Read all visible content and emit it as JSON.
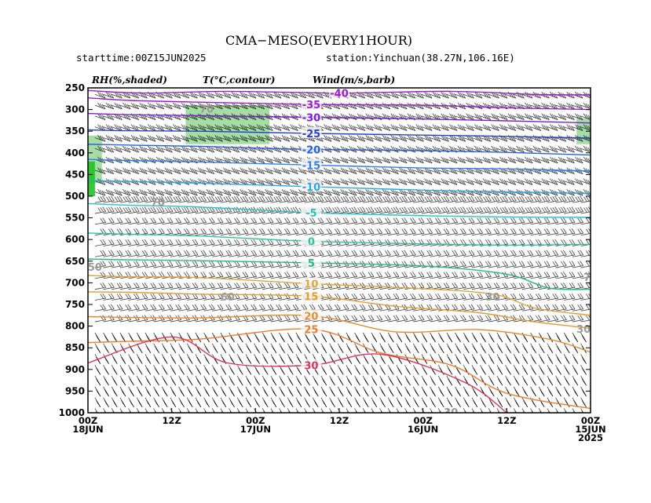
{
  "figure": {
    "title": "CMA−MESO(EVERY1HOUR)",
    "starttime": "starttime:00Z15JUN2025",
    "station": "station:Yinchuan(38.27N,106.16E)",
    "header_rh": "RH(%,shaded)",
    "header_t": "T(°C,contour)",
    "header_wind": "Wind(m/s,barb)"
  },
  "chart_data": {
    "type": "heatmap",
    "description_layers": [
      "relative humidity shaded",
      "temperature contours",
      "wind barbs"
    ],
    "x_ticks": [
      {
        "hour": 72,
        "line1": "00Z",
        "line2": "18JUN",
        "line3": ""
      },
      {
        "hour": 60,
        "line1": "12Z",
        "line2": "",
        "line3": ""
      },
      {
        "hour": 48,
        "line1": "00Z",
        "line2": "17JUN",
        "line3": ""
      },
      {
        "hour": 36,
        "line1": "12Z",
        "line2": "",
        "line3": ""
      },
      {
        "hour": 24,
        "line1": "00Z",
        "line2": "16JUN",
        "line3": ""
      },
      {
        "hour": 12,
        "line1": "12Z",
        "line2": "",
        "line3": ""
      },
      {
        "hour": 0,
        "line1": "00Z",
        "line2": "15JUN",
        "line3": "2025"
      }
    ],
    "x_range_hours": [
      72,
      0
    ],
    "y_ticks": [
      250,
      300,
      350,
      400,
      450,
      500,
      550,
      600,
      650,
      700,
      750,
      800,
      850,
      900,
      950,
      1000
    ],
    "y_range_hPa": [
      250,
      1000
    ],
    "temperature_contours": [
      {
        "value": -40,
        "label": "-40",
        "color": "#9b1fc9",
        "points": [
          [
            0,
            266
          ],
          [
            8,
            265
          ],
          [
            20,
            258
          ],
          [
            36,
            262
          ],
          [
            52,
            258
          ],
          [
            64,
            262
          ],
          [
            72,
            256
          ]
        ]
      },
      {
        "value": -35,
        "label": "-35",
        "color": "#9b1fc9",
        "points": [
          [
            0,
            300
          ],
          [
            12,
            296
          ],
          [
            24,
            290
          ],
          [
            40,
            288
          ],
          [
            56,
            283
          ],
          [
            66,
            279
          ],
          [
            72,
            273
          ]
        ]
      },
      {
        "value": -30,
        "label": "-30",
        "color": "#7a1fd6",
        "points": [
          [
            0,
            331
          ],
          [
            12,
            326
          ],
          [
            24,
            322
          ],
          [
            40,
            318
          ],
          [
            56,
            314
          ],
          [
            66,
            312
          ],
          [
            72,
            309
          ]
        ]
      },
      {
        "value": -25,
        "label": "-25",
        "color": "#2a3fc9",
        "points": [
          [
            0,
            366
          ],
          [
            12,
            362
          ],
          [
            24,
            359
          ],
          [
            40,
            355
          ],
          [
            56,
            350
          ],
          [
            66,
            349
          ],
          [
            72,
            347
          ]
        ]
      },
      {
        "value": -20,
        "label": "-20",
        "color": "#2a5fe0",
        "points": [
          [
            0,
            405
          ],
          [
            12,
            399
          ],
          [
            24,
            395
          ],
          [
            40,
            392
          ],
          [
            56,
            385
          ],
          [
            66,
            382
          ],
          [
            72,
            380
          ]
        ]
      },
      {
        "value": -15,
        "label": "-15",
        "color": "#2e7fe8",
        "points": [
          [
            0,
            442
          ],
          [
            12,
            437
          ],
          [
            24,
            435
          ],
          [
            40,
            428
          ],
          [
            56,
            421
          ],
          [
            66,
            418
          ],
          [
            72,
            415
          ]
        ]
      },
      {
        "value": -10,
        "label": "-10",
        "color": "#2aa6e8",
        "points": [
          [
            0,
            494
          ],
          [
            12,
            490
          ],
          [
            24,
            486
          ],
          [
            40,
            478
          ],
          [
            56,
            470
          ],
          [
            66,
            466
          ],
          [
            72,
            464
          ]
        ]
      },
      {
        "value": -5,
        "label": "-5",
        "color": "#27c2c7",
        "points": [
          [
            0,
            549
          ],
          [
            12,
            548
          ],
          [
            24,
            545
          ],
          [
            40,
            538
          ],
          [
            56,
            525
          ],
          [
            66,
            521
          ],
          [
            72,
            517
          ]
        ]
      },
      {
        "value": 0,
        "label": "0",
        "color": "#2cc59a",
        "points": [
          [
            0,
            611
          ],
          [
            12,
            613
          ],
          [
            24,
            610
          ],
          [
            40,
            604
          ],
          [
            56,
            592
          ],
          [
            66,
            588
          ],
          [
            72,
            585
          ]
        ]
      },
      {
        "value": 5,
        "label": "5",
        "color": "#27b88a",
        "points": [
          [
            0,
            715
          ],
          [
            6,
            712
          ],
          [
            12,
            680
          ],
          [
            24,
            661
          ],
          [
            40,
            654
          ],
          [
            56,
            649
          ],
          [
            66,
            647
          ],
          [
            72,
            645
          ]
        ]
      },
      {
        "value": 10,
        "label": "10",
        "color": "#e0a43a",
        "points": [
          [
            0,
            775
          ],
          [
            8,
            758
          ],
          [
            14,
            726
          ],
          [
            26,
            712
          ],
          [
            40,
            702
          ],
          [
            56,
            688
          ],
          [
            66,
            686
          ],
          [
            72,
            683
          ]
        ]
      },
      {
        "value": 15,
        "label": "15",
        "color": "#e49b2d",
        "points": [
          [
            0,
            805
          ],
          [
            8,
            790
          ],
          [
            16,
            769
          ],
          [
            28,
            754
          ],
          [
            40,
            731
          ],
          [
            56,
            726
          ],
          [
            66,
            722
          ],
          [
            72,
            721
          ]
        ]
      },
      {
        "value": 20,
        "label": "20",
        "color": "#ea8a2a",
        "points": [
          [
            0,
            860
          ],
          [
            6,
            830
          ],
          [
            16,
            808
          ],
          [
            28,
            813
          ],
          [
            40,
            776
          ],
          [
            56,
            781
          ],
          [
            66,
            780
          ],
          [
            72,
            778
          ]
        ]
      },
      {
        "value": 25,
        "label": "25",
        "color": "#f07a2a",
        "points": [
          [
            0,
            990
          ],
          [
            12,
            955
          ],
          [
            20,
            890
          ],
          [
            30,
            862
          ],
          [
            40,
            807
          ],
          [
            56,
            830
          ],
          [
            66,
            835
          ],
          [
            72,
            838
          ]
        ]
      },
      {
        "value": 30,
        "label": "30",
        "color": "#e0325a",
        "points": [
          [
            12,
            1000
          ],
          [
            18,
            930
          ],
          [
            30,
            865
          ],
          [
            40,
            890
          ],
          [
            52,
            885
          ],
          [
            60,
            825
          ],
          [
            72,
            885
          ]
        ]
      }
    ],
    "rh_shading": [
      {
        "level": 70,
        "fill": "#9bd99b",
        "label": "",
        "regions": [
          [
            [
              58,
              290
            ],
            [
              46,
              290
            ],
            [
              46,
              380
            ],
            [
              58,
              380
            ]
          ],
          [
            [
              2,
              320
            ],
            [
              0,
              320
            ],
            [
              0,
              380
            ],
            [
              2,
              380
            ]
          ],
          [
            [
              72,
              360
            ],
            [
              70,
              360
            ],
            [
              70,
              470
            ],
            [
              72,
              470
            ]
          ]
        ]
      },
      {
        "level": 90,
        "fill": "#1fc41f",
        "label": "",
        "regions": [
          [
            [
              72,
              420
            ],
            [
              71,
              420
            ],
            [
              71,
              500
            ],
            [
              72,
              500
            ]
          ]
        ]
      }
    ],
    "rh_labels": [
      {
        "hour": 55,
        "p": 300,
        "text": "70"
      },
      {
        "hour": 62,
        "p": 515,
        "text": "70"
      },
      {
        "hour": 71,
        "p": 665,
        "text": "50"
      },
      {
        "hour": 52,
        "p": 734,
        "text": "60"
      },
      {
        "hour": 14,
        "p": 734,
        "text": "30"
      },
      {
        "hour": 20,
        "p": 1000,
        "text": "30"
      },
      {
        "hour": 0,
        "p": 688,
        "text": "70"
      },
      {
        "hour": 1,
        "p": 808,
        "text": "30"
      }
    ]
  }
}
